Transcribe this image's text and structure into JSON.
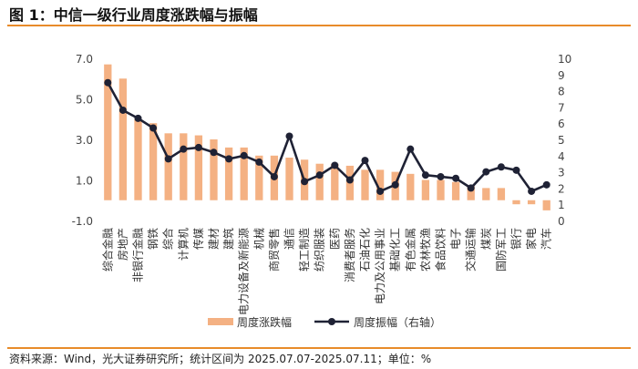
{
  "title": "图 1：中信一级行业周度涨跌幅与振幅",
  "source": "资料来源：Wind，光大证券研究所；统计区间为 2025.07.07-2025.07.11；单位：%",
  "colors": {
    "bar": "#f4b183",
    "line": "#1f2235",
    "rule": "#e88b2a"
  },
  "chart_data": {
    "type": "bar",
    "categories": [
      "综合金融",
      "房地产",
      "非银行金融",
      "钢铁",
      "综合",
      "计算机",
      "传媒",
      "建材",
      "建筑",
      "电力设备及新能源",
      "机械",
      "商贸零售",
      "通信",
      "轻工制造",
      "纺织服装",
      "医药",
      "消费者服务",
      "石油石化",
      "电力及公用事业",
      "基础化工",
      "有色金属",
      "农林牧渔",
      "食品饮料",
      "电子",
      "交通运输",
      "煤炭",
      "国防军工",
      "银行",
      "家电",
      "汽车"
    ],
    "series": [
      {
        "name": "周度涨跌幅",
        "type": "bar",
        "axis": "left",
        "values": [
          6.7,
          6.0,
          4.0,
          3.8,
          3.3,
          3.3,
          3.2,
          3.0,
          2.6,
          2.6,
          2.2,
          2.2,
          2.1,
          2.0,
          1.8,
          1.8,
          1.7,
          1.5,
          1.5,
          1.4,
          1.3,
          1.0,
          1.0,
          0.9,
          0.7,
          0.6,
          0.6,
          -0.2,
          -0.2,
          -0.5
        ]
      },
      {
        "name": "周度振幅（右轴）",
        "type": "line",
        "axis": "right",
        "values": [
          8.5,
          6.8,
          6.3,
          5.7,
          3.8,
          4.4,
          4.5,
          4.2,
          3.8,
          4.0,
          3.6,
          2.7,
          5.2,
          2.4,
          2.8,
          3.4,
          2.5,
          3.7,
          1.8,
          2.2,
          4.4,
          2.8,
          2.7,
          2.6,
          2.0,
          3.0,
          3.3,
          3.1,
          1.8,
          2.2
        ]
      }
    ],
    "left_axis": {
      "ylim": [
        -1.0,
        7.0
      ],
      "ticks": [
        "7.0",
        "5.0",
        "3.0",
        "1.0",
        "-1.0"
      ]
    },
    "right_axis": {
      "ylim": [
        0,
        10
      ],
      "ticks": [
        "10",
        "9",
        "8",
        "7",
        "6",
        "5",
        "4",
        "3",
        "2",
        "1",
        "0"
      ]
    },
    "grid": false,
    "legend_position": "bottom"
  }
}
